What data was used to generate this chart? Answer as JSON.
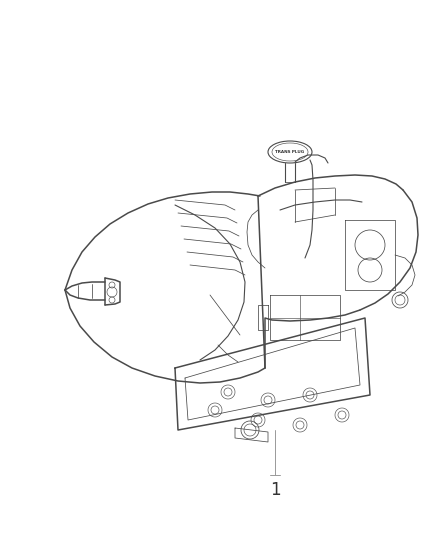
{
  "background_color": "#ffffff",
  "label_number": "1",
  "line_color": "#4a4a4a",
  "text_color": "#333333",
  "figsize": [
    4.38,
    5.33
  ],
  "dpi": 100,
  "trans_plug_text": "TRANS PLUG",
  "assembly_color": "#dddddd",
  "label_line_color": "#999999"
}
